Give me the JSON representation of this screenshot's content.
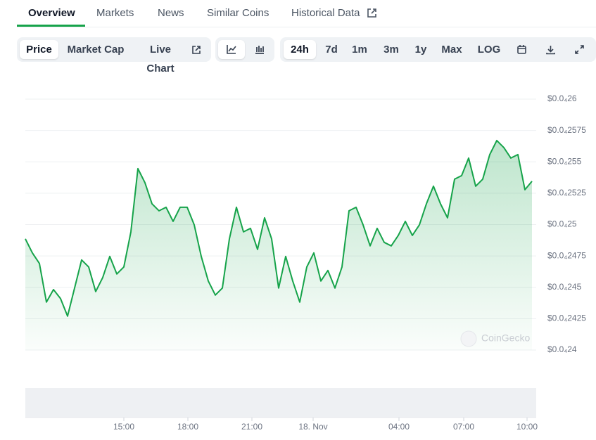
{
  "tabs": [
    "Overview",
    "Markets",
    "News",
    "Similar Coins",
    "Historical Data"
  ],
  "toolbar": {
    "metrics": [
      "Price",
      "Market Cap",
      "Live Chart"
    ],
    "ranges": [
      "24h",
      "7d",
      "1m",
      "3m",
      "1y",
      "Max",
      "LOG"
    ]
  },
  "watermark": "CoinGecko",
  "chart_data": {
    "type": "area",
    "color": "#16a34a",
    "grid": true,
    "xlim": [
      0,
      72.6
    ],
    "xticks": [
      {
        "value": 14,
        "label": "15:00"
      },
      {
        "value": 23.1,
        "label": "18:00"
      },
      {
        "value": 32.2,
        "label": "21:00"
      },
      {
        "value": 40.9,
        "label": "18. Nov"
      },
      {
        "value": 53.1,
        "label": "04:00"
      },
      {
        "value": 62.3,
        "label": "07:00"
      },
      {
        "value": 71.3,
        "label": "10:00"
      }
    ],
    "ylim": [
      2.4e-05,
      2.6e-05
    ],
    "yticks": [
      {
        "value": 2.6e-05,
        "label": "$0.0₄26"
      },
      {
        "value": 2.575e-05,
        "label": "$0.0₄2575"
      },
      {
        "value": 2.55e-05,
        "label": "$0.0₄255"
      },
      {
        "value": 2.525e-05,
        "label": "$0.0₄2525"
      },
      {
        "value": 2.5e-05,
        "label": "$0.0₄25"
      },
      {
        "value": 2.475e-05,
        "label": "$0.0₄2475"
      },
      {
        "value": 2.45e-05,
        "label": "$0.0₄245"
      },
      {
        "value": 2.425e-05,
        "label": "$0.0₄2425"
      },
      {
        "value": 2.4e-05,
        "label": "$0.0₄24"
      }
    ],
    "values": [
      2.4886e-05,
      2.4774e-05,
      2.469e-05,
      2.4382e-05,
      2.4482e-05,
      2.441e-05,
      2.427e-05,
      2.4494e-05,
      2.4718e-05,
      2.4662e-05,
      2.4466e-05,
      2.4578e-05,
      2.4746e-05,
      2.4606e-05,
      2.4662e-05,
      2.4942e-05,
      2.5446e-05,
      2.5334e-05,
      2.5166e-05,
      2.511e-05,
      2.5138e-05,
      2.5026e-05,
      2.5138e-05,
      2.5138e-05,
      2.4998e-05,
      2.4746e-05,
      2.455e-05,
      2.4438e-05,
      2.4494e-05,
      2.4886e-05,
      2.5138e-05,
      2.4942e-05,
      2.497e-05,
      2.4802e-05,
      2.5054e-05,
      2.4886e-05,
      2.4494e-05,
      2.4746e-05,
      2.455e-05,
      2.4382e-05,
      2.4662e-05,
      2.4774e-05,
      2.455e-05,
      2.4634e-05,
      2.4494e-05,
      2.4662e-05,
      2.511e-05,
      2.5138e-05,
      2.4998e-05,
      2.483e-05,
      2.497e-05,
      2.4858e-05,
      2.483e-05,
      2.4914e-05,
      2.5026e-05,
      2.4914e-05,
      2.4998e-05,
      2.5166e-05,
      2.5306e-05,
      2.5166e-05,
      2.5054e-05,
      2.5362e-05,
      2.539e-05,
      2.553e-05,
      2.5306e-05,
      2.5362e-05,
      2.5558e-05,
      2.567e-05,
      2.5614e-05,
      2.553e-05,
      2.5558e-05,
      2.5278e-05,
      2.5345e-05
    ]
  }
}
